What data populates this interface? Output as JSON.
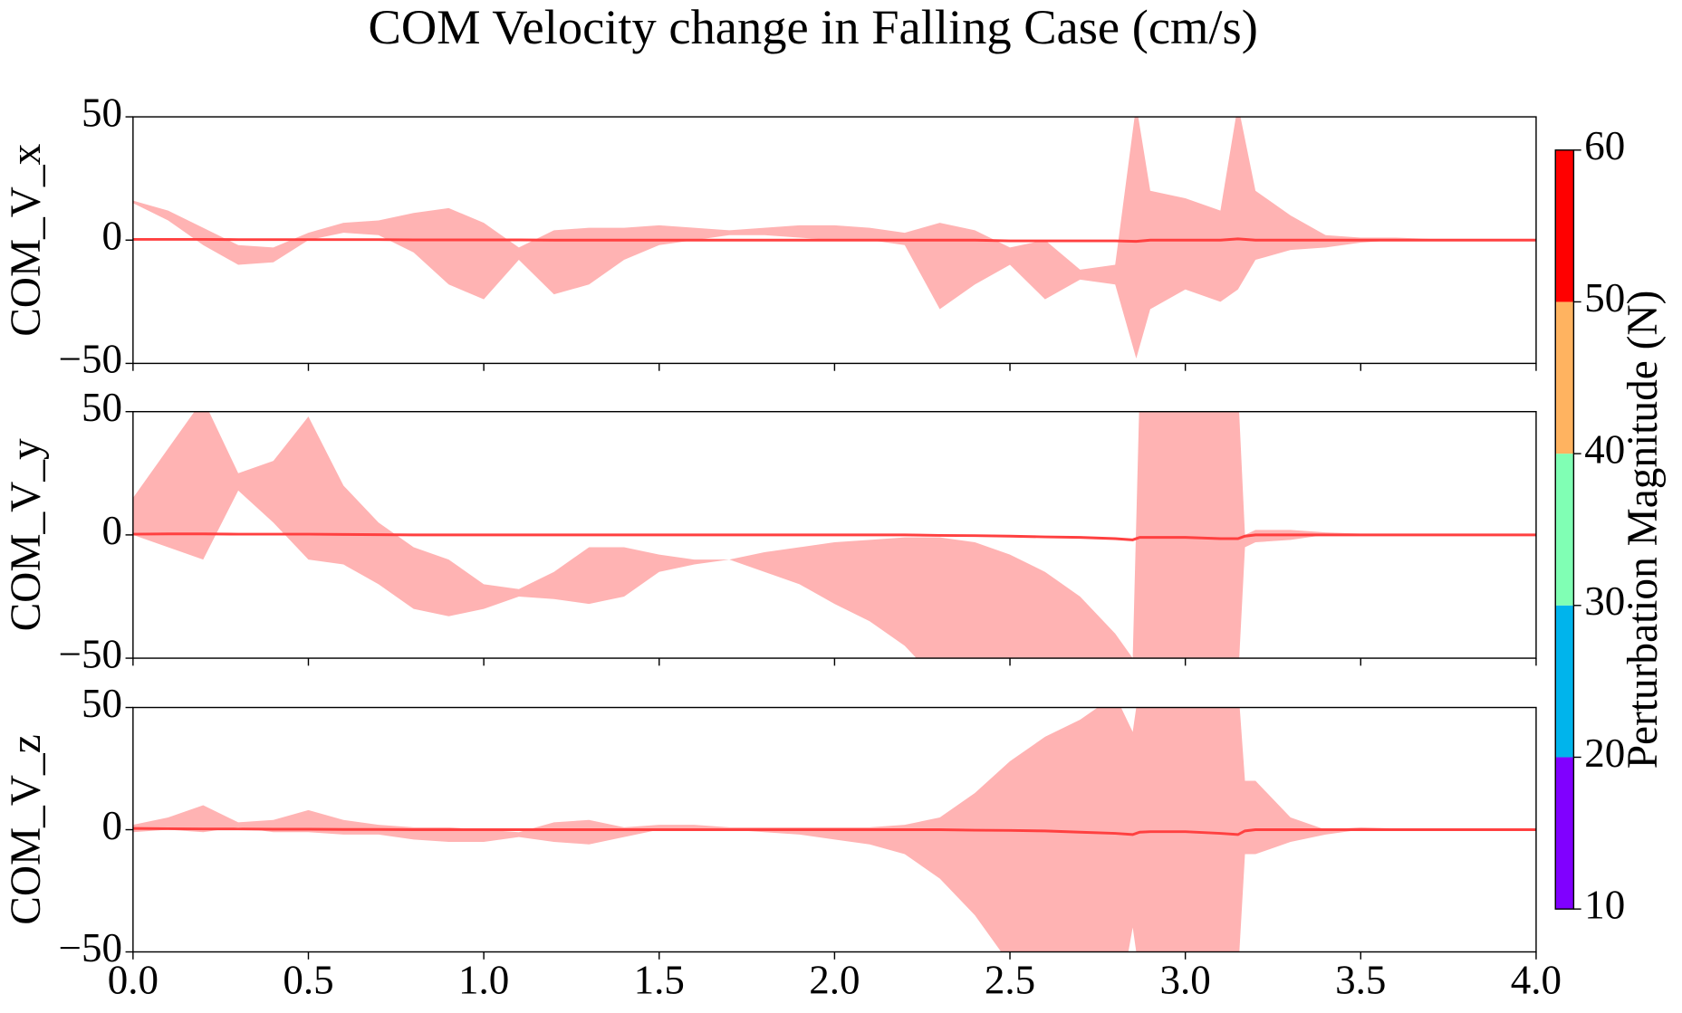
{
  "title": "COM Velocity change in Falling Case (cm/s)",
  "colorbar": {
    "label": "Perturbation Magnitude (N)",
    "boundaries": [
      10,
      20,
      30,
      40,
      50,
      60
    ],
    "colors": [
      "#8000ff",
      "#00b4ec",
      "#80ffb4",
      "#ffb360",
      "#ff0000"
    ],
    "ticks": [
      10,
      20,
      30,
      40,
      50,
      60
    ]
  },
  "chart_data": [
    {
      "type": "band",
      "ylabel": "COM_V_x",
      "band_color": "#ffb3b3",
      "line_color": "#ff4040",
      "ylim": [
        -50,
        50
      ],
      "yticks": [
        {
          "value": -50,
          "label": "−50"
        },
        0,
        50
      ],
      "sharex": true,
      "x": [
        0,
        0.1,
        0.2,
        0.3,
        0.4,
        0.5,
        0.6,
        0.7,
        0.8,
        0.9,
        1.0,
        1.1,
        1.2,
        1.3,
        1.4,
        1.5,
        1.6,
        1.7,
        1.8,
        1.9,
        2.0,
        2.1,
        2.2,
        2.3,
        2.4,
        2.5,
        2.6,
        2.7,
        2.8,
        2.86,
        2.9,
        3.0,
        3.1,
        3.15,
        3.2,
        3.3,
        3.4,
        3.5,
        3.6,
        3.7,
        3.8,
        3.9,
        4.0
      ],
      "upper": [
        16,
        12,
        5,
        -2,
        -3,
        3,
        7,
        8,
        11,
        13,
        7,
        -3,
        4,
        5,
        5,
        6,
        5,
        4,
        5,
        6,
        6,
        5,
        3,
        7,
        4,
        -3,
        0,
        -12,
        -10,
        55,
        20,
        17,
        12,
        55,
        20,
        10,
        2,
        1,
        1,
        0.5,
        0.5,
        0.5,
        0.5
      ],
      "lower": [
        15,
        8,
        -2,
        -10,
        -9,
        0,
        3,
        2,
        -5,
        -18,
        -24,
        -8,
        -22,
        -18,
        -8,
        -2,
        0,
        2,
        2,
        1,
        0,
        0,
        -2,
        -28,
        -18,
        -10,
        -24,
        -16,
        -18,
        -48,
        -28,
        -20,
        -25,
        -20,
        -8,
        -4,
        -3,
        -1,
        0,
        0,
        0,
        0,
        0
      ],
      "mean": [
        0.3,
        0.3,
        0.3,
        0.2,
        0.2,
        0.2,
        0.2,
        0.2,
        0.1,
        0.1,
        0.1,
        0.1,
        0,
        0,
        0,
        0,
        0,
        0,
        0,
        0,
        0,
        0,
        0,
        0,
        0,
        -0.3,
        -0.3,
        -0.3,
        -0.3,
        -0.5,
        0,
        0,
        0,
        0.5,
        0,
        0,
        0,
        0,
        0,
        0,
        0,
        0,
        0
      ]
    },
    {
      "type": "band",
      "ylabel": "COM_V_y",
      "band_color": "#ffb3b3",
      "line_color": "#ff4040",
      "ylim": [
        -50,
        50
      ],
      "yticks": [
        {
          "value": -50,
          "label": "−50"
        },
        0,
        50
      ],
      "sharex": true,
      "x": [
        0,
        0.1,
        0.2,
        0.3,
        0.4,
        0.5,
        0.6,
        0.7,
        0.8,
        0.9,
        1.0,
        1.1,
        1.2,
        1.3,
        1.4,
        1.5,
        1.6,
        1.7,
        1.8,
        1.9,
        2.0,
        2.1,
        2.2,
        2.3,
        2.4,
        2.5,
        2.6,
        2.7,
        2.8,
        2.85,
        2.87,
        2.9,
        3.0,
        3.1,
        3.15,
        3.17,
        3.2,
        3.3,
        3.4,
        3.5,
        3.6,
        3.7,
        3.8,
        3.9,
        4.0
      ],
      "upper": [
        15,
        35,
        55,
        25,
        30,
        48,
        20,
        5,
        -5,
        -10,
        -20,
        -22,
        -15,
        -5,
        -5,
        -8,
        -10,
        -10,
        -7,
        -5,
        -3,
        -2,
        -1,
        -1,
        -3,
        -8,
        -15,
        -25,
        -40,
        -50,
        60,
        60,
        60,
        60,
        60,
        0,
        2,
        2,
        1,
        0.5,
        0.5,
        0.5,
        0.5,
        0.5,
        0.5
      ],
      "lower": [
        0,
        -5,
        -10,
        18,
        5,
        -10,
        -12,
        -20,
        -30,
        -33,
        -30,
        -25,
        -26,
        -28,
        -25,
        -15,
        -12,
        -10,
        -15,
        -20,
        -28,
        -35,
        -45,
        -60,
        -65,
        -70,
        -75,
        -80,
        -80,
        -80,
        -60,
        -60,
        -60,
        -60,
        -60,
        -5,
        -3,
        -2,
        0,
        0,
        0,
        0,
        0,
        0,
        0
      ],
      "mean": [
        0.3,
        0.4,
        0.4,
        0.3,
        0.3,
        0.3,
        0.2,
        0.1,
        0,
        0,
        0,
        0,
        0,
        0,
        0,
        0,
        0,
        0,
        0,
        0,
        0,
        0,
        0,
        -0.2,
        -0.3,
        -0.5,
        -0.8,
        -1,
        -1.5,
        -2,
        -1,
        -1,
        -1,
        -1.5,
        -1.5,
        -0.5,
        0,
        0,
        0,
        0,
        0,
        0,
        0,
        0,
        0
      ]
    },
    {
      "type": "band",
      "ylabel": "COM_V_z",
      "band_color": "#ffb3b3",
      "line_color": "#ff4040",
      "ylim": [
        -50,
        50
      ],
      "yticks": [
        {
          "value": -50,
          "label": "−50"
        },
        0,
        50
      ],
      "xlim": [
        0,
        4
      ],
      "xticks": [
        {
          "value": 0,
          "label": "0.0"
        },
        0.5,
        {
          "value": 1,
          "label": "1.0"
        },
        1.5,
        {
          "value": 2,
          "label": "2.0"
        },
        2.5,
        {
          "value": 3,
          "label": "3.0"
        },
        3.5,
        {
          "value": 4,
          "label": "4.0"
        }
      ],
      "x": [
        0,
        0.1,
        0.2,
        0.3,
        0.4,
        0.5,
        0.6,
        0.7,
        0.8,
        0.9,
        1.0,
        1.1,
        1.2,
        1.3,
        1.4,
        1.5,
        1.6,
        1.7,
        1.8,
        1.9,
        2.0,
        2.1,
        2.2,
        2.3,
        2.4,
        2.5,
        2.6,
        2.7,
        2.8,
        2.85,
        2.87,
        2.9,
        3.0,
        3.1,
        3.15,
        3.17,
        3.2,
        3.3,
        3.4,
        3.5,
        3.6,
        3.7,
        3.8,
        3.9,
        4.0
      ],
      "upper": [
        2,
        5,
        10,
        3,
        4,
        8,
        4,
        2,
        1,
        1,
        0,
        -1,
        3,
        4,
        1,
        2,
        2,
        1,
        1,
        1,
        1,
        1,
        2,
        5,
        15,
        28,
        38,
        45,
        55,
        40,
        60,
        60,
        60,
        60,
        60,
        20,
        20,
        5,
        0,
        1,
        0.5,
        0.5,
        0.5,
        0.5,
        0.5
      ],
      "lower": [
        -1,
        0,
        -1,
        1,
        -1,
        -1,
        -2,
        -2,
        -4,
        -5,
        -5,
        -3,
        -5,
        -6,
        -3,
        0,
        0,
        0,
        -1,
        -2,
        -4,
        -6,
        -10,
        -20,
        -35,
        -55,
        -75,
        -80,
        -80,
        -40,
        -60,
        -60,
        -60,
        -60,
        -60,
        -10,
        -10,
        -5,
        -2,
        0,
        0,
        0,
        0,
        0,
        0
      ],
      "mean": [
        0.5,
        0.4,
        0.3,
        0.3,
        0.2,
        0.2,
        0.1,
        0.1,
        0,
        0,
        0,
        0,
        0,
        0,
        0,
        0,
        0,
        0,
        0,
        0,
        0,
        0,
        0,
        0,
        -0.2,
        -0.3,
        -0.5,
        -1,
        -1.5,
        -2,
        -1,
        -0.8,
        -0.8,
        -1.5,
        -2,
        -0.5,
        0,
        0,
        0,
        0,
        0,
        0,
        0,
        0,
        0
      ]
    }
  ]
}
